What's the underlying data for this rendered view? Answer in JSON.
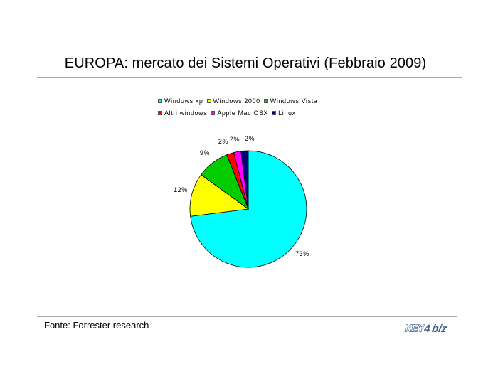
{
  "chart_data": {
    "type": "pie",
    "title": "EUROPA: mercato dei Sistemi Operativi (Febbraio 2009)",
    "legend_position": "top",
    "slices": [
      {
        "label": "Windows xp",
        "value": 73,
        "display": "73%",
        "color": "#00ffff"
      },
      {
        "label": "Windows 2000",
        "value": 12,
        "display": "12%",
        "color": "#ffff00"
      },
      {
        "label": "Windows Vista",
        "value": 9,
        "display": "9%",
        "color": "#00cc00"
      },
      {
        "label": "Altri windows",
        "value": 2,
        "display": "2%",
        "color": "#ff0000"
      },
      {
        "label": "Apple Mac OSX",
        "value": 2,
        "display": "2%",
        "color": "#ff00ff"
      },
      {
        "label": "Linux",
        "value": 2,
        "display": "2%",
        "color": "#000080"
      }
    ]
  },
  "footer": {
    "source": "Fonte: Forrester research",
    "logo_text": "KEY4biz",
    "logo_icon": "key4biz-logo"
  }
}
